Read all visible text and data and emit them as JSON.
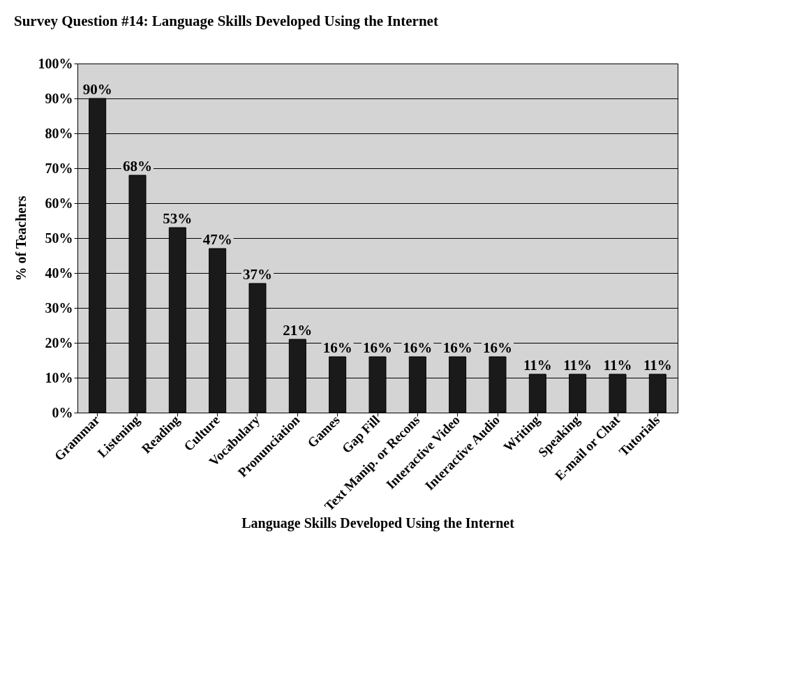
{
  "chart_data": {
    "type": "bar",
    "title": "Survey Question #14: Language Skills Developed Using the Internet",
    "xlabel": "Language Skills Developed Using the Internet",
    "ylabel": "% of Teachers",
    "categories": [
      "Grammar",
      "Listening",
      "Reading",
      "Culture",
      "Vocabulary",
      "Pronunciation",
      "Games",
      "Gap Fill",
      "Text Manip. or Recons",
      "Interactive Video",
      "Interactive Audio",
      "Writing",
      "Speaking",
      "E-mail or Chat",
      "Tutorials"
    ],
    "values": [
      90,
      68,
      53,
      47,
      37,
      21,
      16,
      16,
      16,
      16,
      16,
      11,
      11,
      11,
      11
    ],
    "value_labels": [
      "90%",
      "68%",
      "53%",
      "47%",
      "37%",
      "21%",
      "16%",
      "16%",
      "16%",
      "16%",
      "16%",
      "11%",
      "11%",
      "11%",
      "11%"
    ],
    "color": "#1a1a1a",
    "ylim": [
      0,
      100
    ],
    "yticks": [
      {
        "value": 0,
        "label": "0%"
      },
      {
        "value": 10,
        "label": "10%"
      },
      {
        "value": 20,
        "label": "20%"
      },
      {
        "value": 30,
        "label": "30%"
      },
      {
        "value": 40,
        "label": "40%"
      },
      {
        "value": 50,
        "label": "50%"
      },
      {
        "value": 60,
        "label": "60%"
      },
      {
        "value": 70,
        "label": "70%"
      },
      {
        "value": 80,
        "label": "80%"
      },
      {
        "value": 90,
        "label": "90%"
      },
      {
        "value": 100,
        "label": "100%"
      }
    ],
    "grid": "y"
  }
}
